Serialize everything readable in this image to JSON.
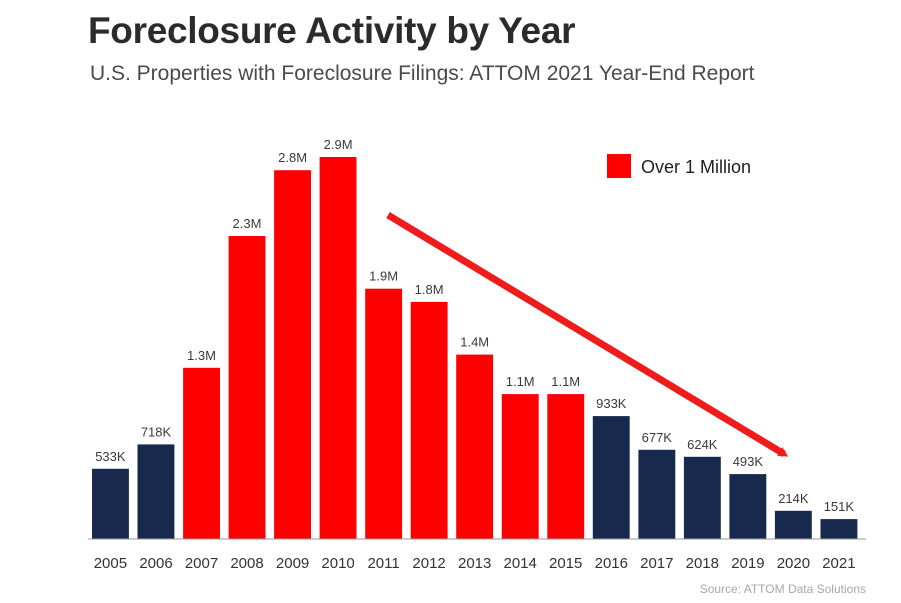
{
  "colors": {
    "over_million": "#ff0000",
    "under_million": "#172a4d",
    "trend_arrow": "#f01c1c",
    "baseline": "#9a9a9a"
  },
  "legend": {
    "label": "Over 1 Million",
    "placement": "top-right"
  },
  "source": "Source: ATTOM Data Solutions",
  "chart_data": {
    "type": "bar",
    "title": "Foreclosure Activity by Year",
    "subtitle": "U.S. Properties with Foreclosure Filings: ATTOM 2021 Year-End Report",
    "xlabel": "",
    "ylabel": "",
    "grid": false,
    "ylim": [
      0,
      3000000
    ],
    "categories": [
      "2005",
      "2006",
      "2007",
      "2008",
      "2009",
      "2010",
      "2011",
      "2012",
      "2013",
      "2014",
      "2015",
      "2016",
      "2017",
      "2018",
      "2019",
      "2020",
      "2021"
    ],
    "values": [
      533000,
      718000,
      1300000,
      2300000,
      2800000,
      2900000,
      1900000,
      1800000,
      1400000,
      1100000,
      1100000,
      933000,
      677000,
      624000,
      493000,
      214000,
      151000
    ],
    "data_labels": [
      "533K",
      "718K",
      "1.3M",
      "2.3M",
      "2.8M",
      "2.9M",
      "1.9M",
      "1.8M",
      "1.4M",
      "1.1M",
      "1.1M",
      "933K",
      "677K",
      "624K",
      "493K",
      "214K",
      "151K"
    ],
    "highlight": {
      "label": "Over 1 Million",
      "threshold": 1000000
    },
    "annotations": [
      {
        "type": "arrow",
        "from": "2011",
        "to": "2020",
        "meaning": "downward trend"
      }
    ]
  }
}
